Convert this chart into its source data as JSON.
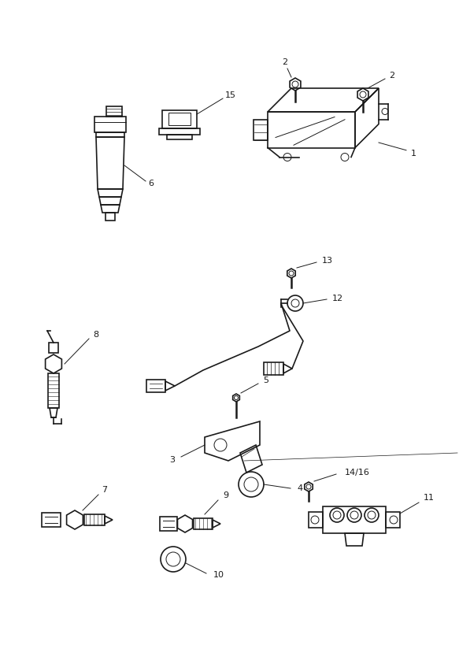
{
  "bg_color": "#ffffff",
  "line_color": "#1a1a1a",
  "figsize": [
    5.83,
    8.24
  ],
  "dpi": 100
}
